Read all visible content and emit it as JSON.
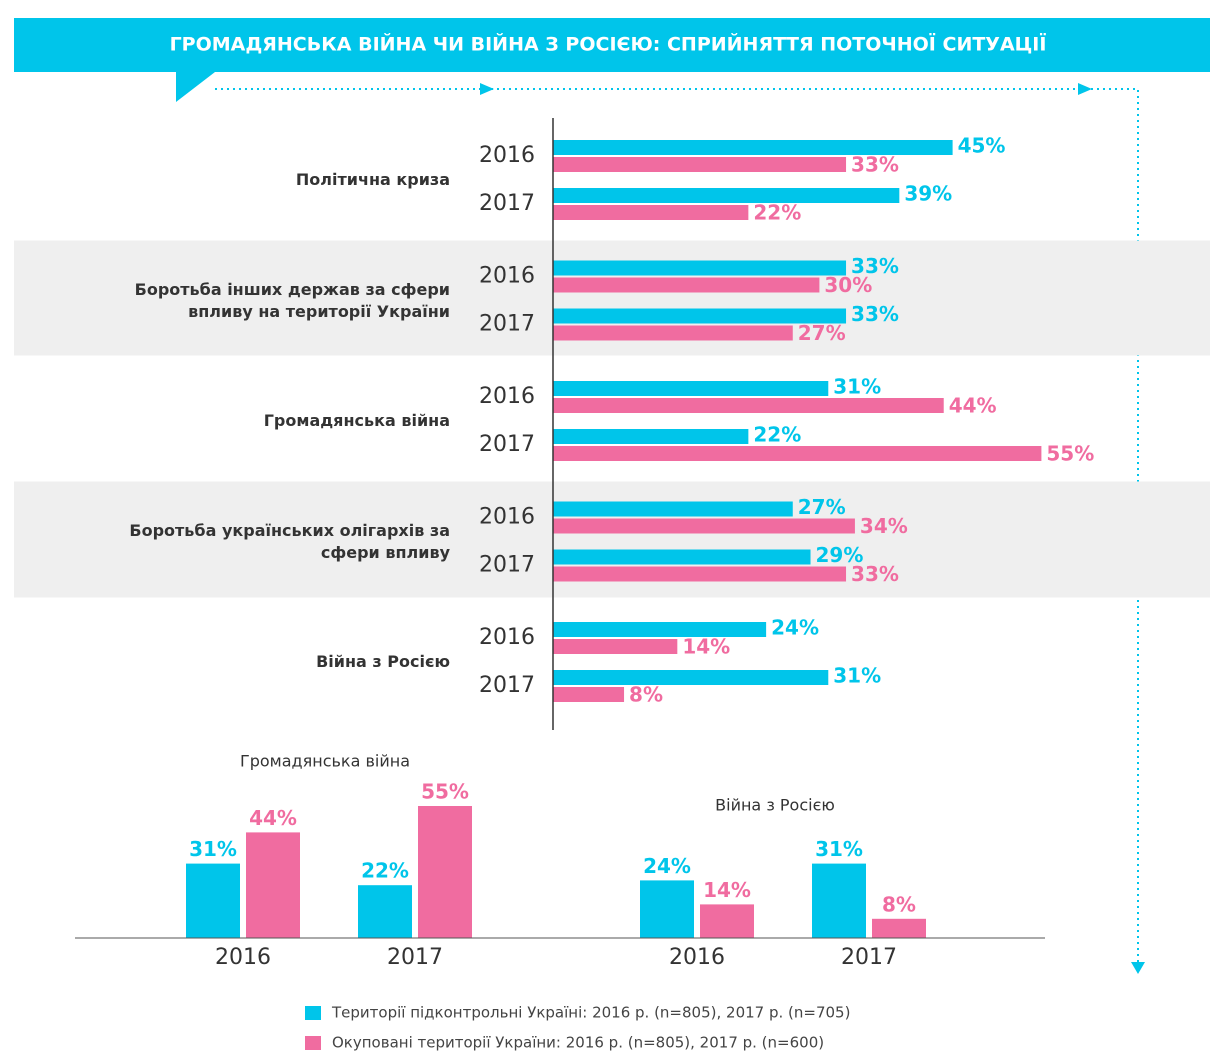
{
  "title": "ГРОМАДЯНСЬКА ВІЙНА ЧИ ВІЙНА З РОСІЄЮ: СПРИЙНЯТТЯ ПОТОЧНОЇ СИТУАЦІЇ",
  "chart_data": [
    {
      "type": "grouped-hbar",
      "categories": [
        "Політична криза",
        "Боротьба інших держав за сфери впливу на території України",
        "Громадянська війна",
        "Боротьба українських олігархів за сфери впливу",
        "Війна з Росією"
      ],
      "years": [
        "2016",
        "2017"
      ],
      "series": [
        {
          "name": "Території підконтрольні Україні:  2016 р. (n=805), 2017 р. (n=705)",
          "color": "#00c5ea",
          "values": [
            [
              45,
              39
            ],
            [
              33,
              33
            ],
            [
              31,
              22
            ],
            [
              27,
              29
            ],
            [
              24,
              31
            ]
          ],
          "value_labels": [
            [
              "45%",
              "39%"
            ],
            [
              "33%",
              "33%"
            ],
            [
              "31%",
              "22%"
            ],
            [
              "27%",
              "29%"
            ],
            [
              "24%",
              "31%"
            ]
          ]
        },
        {
          "name": "Окуповані території України: 2016 р. (n=805), 2017 р. (n=600)",
          "color": "#f06ca0",
          "values": [
            [
              33,
              22
            ],
            [
              30,
              27
            ],
            [
              44,
              55
            ],
            [
              34,
              33
            ],
            [
              14,
              8
            ]
          ],
          "value_labels": [
            [
              "33%",
              "22%"
            ],
            [
              "30%",
              "27%"
            ],
            [
              "44%",
              "55%"
            ],
            [
              "34%",
              "33%"
            ],
            [
              "14%",
              "8%"
            ]
          ]
        }
      ]
    },
    {
      "type": "bar",
      "title": "Громадянська війна",
      "categories": [
        "2016",
        "2017"
      ],
      "series": [
        {
          "color": "#00c5ea",
          "values": [
            31,
            22
          ],
          "value_labels": [
            "31%",
            "22%"
          ]
        },
        {
          "color": "#f06ca0",
          "values": [
            44,
            55
          ],
          "value_labels": [
            "44%",
            "55%"
          ]
        }
      ]
    },
    {
      "type": "bar",
      "title": "Війна з Росією",
      "categories": [
        "2016",
        "2017"
      ],
      "series": [
        {
          "color": "#00c5ea",
          "values": [
            24,
            31
          ],
          "value_labels": [
            "24%",
            "31%"
          ]
        },
        {
          "color": "#f06ca0",
          "values": [
            14,
            8
          ],
          "value_labels": [
            "14%",
            "8%"
          ]
        }
      ]
    }
  ]
}
